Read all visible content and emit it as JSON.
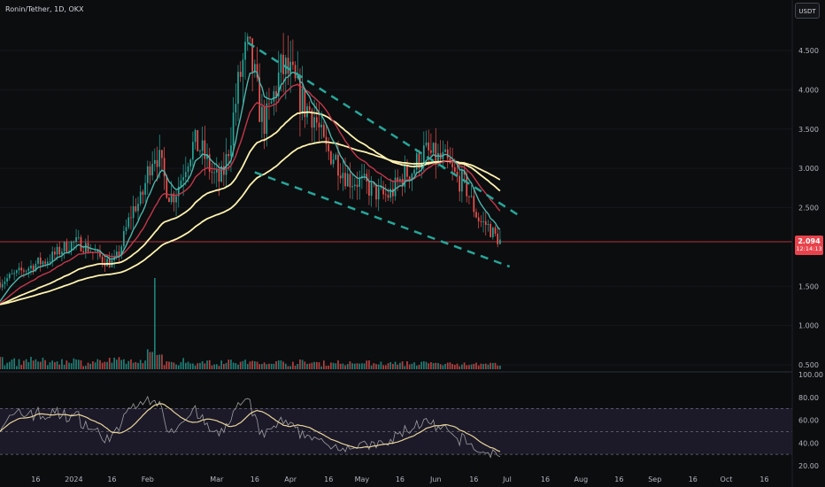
{
  "header": {
    "symbol_title": "Ronin/Tether, 1D, OKX",
    "currency_label": "USDT"
  },
  "price_badge": {
    "price": "2.094",
    "countdown": "12:14:13"
  },
  "colors": {
    "background": "#0c0d0f",
    "up": "#26a69a",
    "down": "#ef5350",
    "ema_short": "#4db6ac",
    "ema_mid": "#c2384a",
    "ma_long": "#fff3b0",
    "trend_lines": "#26a69a",
    "rsi_line": "#9e9e9e",
    "rsi_ma": "#e8d59a",
    "rsi_band": "#2a2440",
    "price_line": "#e8434c"
  },
  "chart_data": {
    "type": "candlestick",
    "symbol": "Ronin/Tether",
    "interval": "1D",
    "exchange": "OKX",
    "last_price": 2.094,
    "price_axis_ticks": [
      "4.500",
      "4.000",
      "3.500",
      "3.000",
      "2.500",
      "1.500",
      "1.000",
      "0.500"
    ],
    "ylim": [
      0.45,
      4.75
    ],
    "time_axis_ticks": [
      "16",
      "2024",
      "16",
      "Feb",
      "Mar",
      "16",
      "Apr",
      "16",
      "May",
      "16",
      "Jun",
      "16",
      "Jul",
      "16",
      "Aug",
      "16",
      "Sep",
      "16",
      "Oct",
      "16"
    ],
    "key_prices": [
      {
        "date": "Dec 16",
        "price": 1.8
      },
      {
        "date": "Jan 1",
        "price": 2.05
      },
      {
        "date": "Jan 16",
        "price": 1.8
      },
      {
        "date": "Jan 27",
        "price": 2.55
      },
      {
        "date": "Feb 3",
        "price": 3.2
      },
      {
        "date": "Feb 10",
        "price": 2.65
      },
      {
        "date": "Feb 20",
        "price": 3.3
      },
      {
        "date": "Mar 1",
        "price": 2.85
      },
      {
        "date": "Mar 13",
        "price": 4.45
      },
      {
        "date": "Mar 20",
        "price": 3.6
      },
      {
        "date": "Mar 28",
        "price": 4.25
      },
      {
        "date": "Apr 8",
        "price": 3.75
      },
      {
        "date": "Apr 16",
        "price": 3.2
      },
      {
        "date": "Apr 26",
        "price": 2.85
      },
      {
        "date": "May 10",
        "price": 2.65
      },
      {
        "date": "May 20",
        "price": 2.95
      },
      {
        "date": "May 26",
        "price": 3.2
      },
      {
        "date": "Jun 3",
        "price": 3.1
      },
      {
        "date": "Jun 10",
        "price": 2.85
      },
      {
        "date": "Jun 20",
        "price": 2.3
      },
      {
        "date": "Jun 27",
        "price": 2.094
      }
    ],
    "volume_spike": {
      "date": "Feb 3",
      "relative": 1.0
    },
    "indicators": [
      "EMA short (teal)",
      "EMA mid (red)",
      "MA long (yellow)",
      "MA longest (yellow)"
    ],
    "trend_channel": {
      "upper": [
        {
          "date": "Mar 13",
          "price": 4.6
        },
        {
          "date": "Jul 5",
          "price": 2.4
        }
      ],
      "lower": [
        {
          "date": "Mar 16",
          "price": 2.95
        },
        {
          "date": "Jul 1",
          "price": 1.75
        }
      ]
    },
    "rsi": {
      "axis_ticks": [
        "100.00",
        "80.00",
        "60.00",
        "40.00",
        "20.00"
      ],
      "ylim": [
        18,
        100
      ],
      "bands": [
        70,
        50,
        30
      ],
      "last_value": 28
    }
  }
}
